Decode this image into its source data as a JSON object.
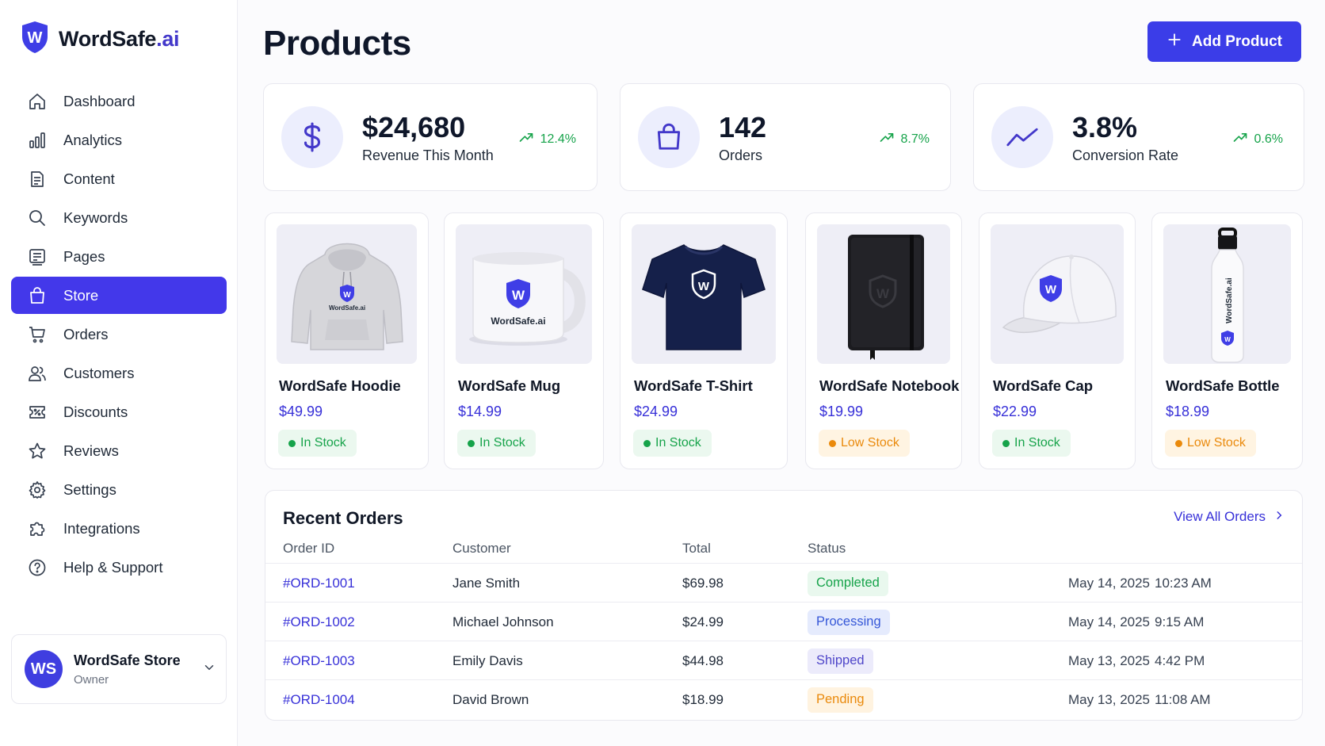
{
  "brand": {
    "name_main": "WordSafe",
    "name_suffix": ".ai",
    "logo_letter": "W"
  },
  "colors": {
    "accent": "#3b3de8",
    "success": "#16a34a",
    "warning": "#ea8a0c",
    "link": "#3730d8",
    "icon_bg": "#eceefd"
  },
  "sidebar": {
    "items": [
      {
        "label": "Dashboard",
        "icon": "home-icon"
      },
      {
        "label": "Analytics",
        "icon": "bar-chart-icon"
      },
      {
        "label": "Content",
        "icon": "document-icon"
      },
      {
        "label": "Keywords",
        "icon": "search-icon"
      },
      {
        "label": "Pages",
        "icon": "pages-icon"
      },
      {
        "label": "Store",
        "icon": "shopping-bag-icon",
        "active": true
      },
      {
        "label": "Orders",
        "icon": "cart-icon"
      },
      {
        "label": "Customers",
        "icon": "users-icon"
      },
      {
        "label": "Discounts",
        "icon": "ticket-icon"
      },
      {
        "label": "Reviews",
        "icon": "star-icon"
      },
      {
        "label": "Settings",
        "icon": "gear-icon"
      },
      {
        "label": "Integrations",
        "icon": "puzzle-icon"
      },
      {
        "label": "Help & Support",
        "icon": "help-icon"
      }
    ],
    "account": {
      "initials": "WS",
      "name": "WordSafe Store",
      "role": "Owner"
    }
  },
  "header": {
    "title": "Products",
    "add_button": "Add Product"
  },
  "stats": [
    {
      "value": "$24,680",
      "label": "Revenue This Month",
      "trend": "12.4%",
      "icon": "dollar-icon"
    },
    {
      "value": "142",
      "label": "Orders",
      "trend": "8.7%",
      "icon": "shopping-bag-icon"
    },
    {
      "value": "3.8%",
      "label": "Conversion Rate",
      "trend": "0.6%",
      "icon": "trend-line-icon"
    }
  ],
  "products": [
    {
      "name": "WordSafe Hoodie",
      "price": "$49.99",
      "stock": "In Stock",
      "stock_level": "in",
      "image": "hoodie-image",
      "logo_text": "WordSafe.ai"
    },
    {
      "name": "WordSafe Mug",
      "price": "$14.99",
      "stock": "In Stock",
      "stock_level": "in",
      "image": "mug-image",
      "logo_text": "WordSafe.ai"
    },
    {
      "name": "WordSafe T-Shirt",
      "price": "$24.99",
      "stock": "In Stock",
      "stock_level": "in",
      "image": "tshirt-image"
    },
    {
      "name": "WordSafe Notebook",
      "price": "$19.99",
      "stock": "Low Stock",
      "stock_level": "low",
      "image": "notebook-image"
    },
    {
      "name": "WordSafe Cap",
      "price": "$22.99",
      "stock": "In Stock",
      "stock_level": "in",
      "image": "cap-image"
    },
    {
      "name": "WordSafe Bottle",
      "price": "$18.99",
      "stock": "Low Stock",
      "stock_level": "low",
      "image": "bottle-image",
      "logo_text": "WordSafe.ai"
    }
  ],
  "orders": {
    "title": "Recent Orders",
    "view_all": "View All Orders",
    "columns": [
      "Order ID",
      "Customer",
      "Total",
      "Status"
    ],
    "rows": [
      {
        "id": "#ORD-1001",
        "customer": "Jane Smith",
        "total": "$69.98",
        "status": "Completed",
        "status_kind": "completed",
        "date": "May 14, 2025",
        "time": "10:23 AM"
      },
      {
        "id": "#ORD-1002",
        "customer": "Michael Johnson",
        "total": "$24.99",
        "status": "Processing",
        "status_kind": "processing",
        "date": "May 14, 2025",
        "time": "9:15 AM"
      },
      {
        "id": "#ORD-1003",
        "customer": "Emily Davis",
        "total": "$44.98",
        "status": "Shipped",
        "status_kind": "shipped",
        "date": "May 13, 2025",
        "time": "4:42 PM"
      },
      {
        "id": "#ORD-1004",
        "customer": "David Brown",
        "total": "$18.99",
        "status": "Pending",
        "status_kind": "pending",
        "date": "May 13, 2025",
        "time": "11:08 AM"
      }
    ]
  }
}
